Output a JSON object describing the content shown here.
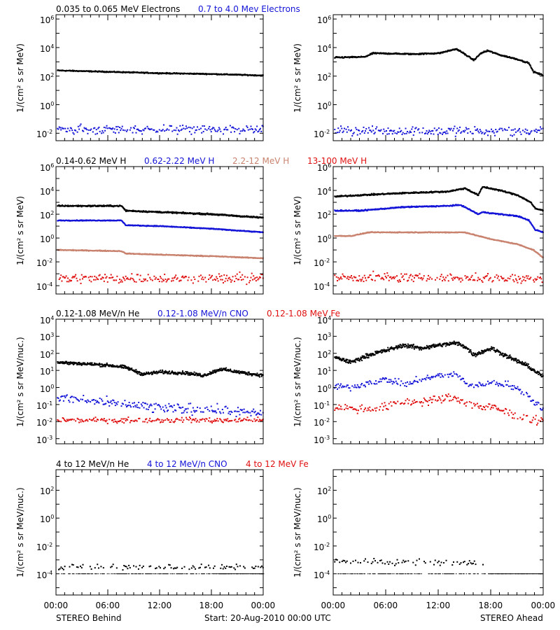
{
  "colors": {
    "black": "#000000",
    "blue": "#1414d8",
    "tan": "#c8826e",
    "red": "#e01010"
  },
  "x_ticks": [
    "00:00",
    "06:00",
    "12:00",
    "18:00",
    "00:00"
  ],
  "footer": {
    "left": "STEREO Behind",
    "center": "Start: 20-Aug-2010 00:00 UTC",
    "right": "STEREO Ahead"
  },
  "chart_data": [
    {
      "type": "scatter",
      "panel": "electrons-behind",
      "ylabel": "1/(cm² s sr MeV)",
      "yscale": "log",
      "ylim": [
        0.003,
        2000000
      ],
      "y_ticks": [
        {
          "label": "10^-2",
          "v": 0.01
        },
        {
          "label": "10^0",
          "v": 1
        },
        {
          "label": "10^2",
          "v": 100
        },
        {
          "label": "10^4",
          "v": 10000
        },
        {
          "label": "10^6",
          "v": 1000000
        }
      ],
      "x": [
        0,
        24
      ],
      "legend": [
        {
          "name": "0.035 to 0.065 MeV Electrons",
          "color": "black"
        },
        {
          "name": "0.7 to 4.0 Mev Electrons",
          "color": "blue"
        }
      ],
      "series": [
        {
          "color": "black",
          "style": "line",
          "noise": 0.03,
          "points": [
            [
              0,
              250
            ],
            [
              6,
              200
            ],
            [
              12,
              160
            ],
            [
              18,
              140
            ],
            [
              24,
              110
            ]
          ]
        },
        {
          "color": "blue",
          "style": "scatter",
          "noise": 0.25,
          "points": [
            [
              0,
              0.018
            ],
            [
              24,
              0.018
            ]
          ]
        }
      ]
    },
    {
      "type": "scatter",
      "panel": "electrons-ahead",
      "ylabel": "1/(cm² s sr MeV)",
      "yscale": "log",
      "ylim": [
        0.003,
        2000000
      ],
      "y_ticks": [
        {
          "label": "10^-2",
          "v": 0.01
        },
        {
          "label": "10^0",
          "v": 1
        },
        {
          "label": "10^2",
          "v": 100
        },
        {
          "label": "10^4",
          "v": 10000
        },
        {
          "label": "10^6",
          "v": 1000000
        }
      ],
      "x": [
        0,
        24
      ],
      "legend": [],
      "series": [
        {
          "color": "black",
          "style": "line",
          "noise": 0.04,
          "points": [
            [
              0,
              2000
            ],
            [
              3.5,
              2200
            ],
            [
              4.5,
              4000
            ],
            [
              9,
              3500
            ],
            [
              12,
              4000
            ],
            [
              14,
              8000
            ],
            [
              14.8,
              4000
            ],
            [
              16,
              1300
            ],
            [
              16.8,
              4000
            ],
            [
              17.6,
              6000
            ],
            [
              19,
              3000
            ],
            [
              21,
              1500
            ],
            [
              22.3,
              800
            ],
            [
              22.8,
              200
            ],
            [
              24,
              110
            ]
          ]
        },
        {
          "color": "blue",
          "style": "scatter",
          "noise": 0.25,
          "points": [
            [
              0,
              0.015
            ],
            [
              24,
              0.014
            ]
          ]
        }
      ]
    },
    {
      "type": "scatter",
      "panel": "protons-behind",
      "ylabel": "1/(cm² s sr MeV)",
      "yscale": "log",
      "ylim": [
        2e-05,
        1000000
      ],
      "y_ticks": [
        {
          "label": "10^-4",
          "v": 0.0001
        },
        {
          "label": "10^-2",
          "v": 0.01
        },
        {
          "label": "10^0",
          "v": 1
        },
        {
          "label": "10^2",
          "v": 100
        },
        {
          "label": "10^4",
          "v": 10000
        },
        {
          "label": "10^6",
          "v": 1000000
        }
      ],
      "x": [
        0,
        24
      ],
      "legend": [
        {
          "name": "0.14-0.62 MeV H",
          "color": "black"
        },
        {
          "name": "0.62-2.22 MeV H",
          "color": "blue"
        },
        {
          "name": "2.2-12 MeV H",
          "color": "tan"
        },
        {
          "name": "13-100 MeV H",
          "color": "red"
        }
      ],
      "series": [
        {
          "color": "black",
          "style": "line",
          "noise": 0.05,
          "points": [
            [
              0,
              500
            ],
            [
              7.5,
              500
            ],
            [
              8,
              200
            ],
            [
              12,
              150
            ],
            [
              18,
              100
            ],
            [
              24,
              50
            ]
          ]
        },
        {
          "color": "blue",
          "style": "line",
          "noise": 0.03,
          "points": [
            [
              0,
              30
            ],
            [
              7.5,
              30
            ],
            [
              8,
              12
            ],
            [
              12,
              10
            ],
            [
              18,
              6
            ],
            [
              24,
              3
            ]
          ]
        },
        {
          "color": "tan",
          "style": "line",
          "noise": 0.03,
          "points": [
            [
              0,
              0.1
            ],
            [
              7.5,
              0.08
            ],
            [
              8,
              0.05
            ],
            [
              12,
              0.04
            ],
            [
              18,
              0.03
            ],
            [
              24,
              0.02
            ]
          ]
        },
        {
          "color": "red",
          "style": "scatter",
          "noise": 0.35,
          "points": [
            [
              0,
              0.0004
            ],
            [
              24,
              0.0004
            ]
          ]
        }
      ]
    },
    {
      "type": "scatter",
      "panel": "protons-ahead",
      "ylabel": "1/(cm² s sr MeV)",
      "yscale": "log",
      "ylim": [
        2e-05,
        1000000
      ],
      "y_ticks": [
        {
          "label": "10^-4",
          "v": 0.0001
        },
        {
          "label": "10^-2",
          "v": 0.01
        },
        {
          "label": "10^0",
          "v": 1
        },
        {
          "label": "10^2",
          "v": 100
        },
        {
          "label": "10^4",
          "v": 10000
        },
        {
          "label": "10^6",
          "v": 1000000
        }
      ],
      "x": [
        0,
        24
      ],
      "legend": [],
      "series": [
        {
          "color": "black",
          "style": "line",
          "noise": 0.05,
          "points": [
            [
              0,
              3000
            ],
            [
              3,
              4000
            ],
            [
              8,
              6000
            ],
            [
              13,
              8000
            ],
            [
              15,
              15000
            ],
            [
              16.5,
              4000
            ],
            [
              17,
              20000
            ],
            [
              19,
              10000
            ],
            [
              21,
              4000
            ],
            [
              22.5,
              1000
            ],
            [
              23,
              300
            ],
            [
              24,
              200
            ]
          ]
        },
        {
          "color": "blue",
          "style": "line",
          "noise": 0.04,
          "points": [
            [
              0,
              200
            ],
            [
              3,
              200
            ],
            [
              8,
              400
            ],
            [
              13,
              500
            ],
            [
              14.5,
              600
            ],
            [
              16.5,
              100
            ],
            [
              17,
              150
            ],
            [
              19,
              100
            ],
            [
              21,
              70
            ],
            [
              22.3,
              30
            ],
            [
              23,
              5
            ],
            [
              24,
              3
            ]
          ]
        },
        {
          "color": "tan",
          "style": "line",
          "noise": 0.03,
          "points": [
            [
              0,
              1.5
            ],
            [
              2,
              1.5
            ],
            [
              4,
              3
            ],
            [
              8,
              3
            ],
            [
              12,
              3
            ],
            [
              15,
              3
            ],
            [
              16.5,
              1.5
            ],
            [
              18,
              0.8
            ],
            [
              21,
              0.3
            ],
            [
              22.8,
              0.1
            ],
            [
              24,
              0.02
            ]
          ]
        },
        {
          "color": "red",
          "style": "scatter",
          "noise": 0.3,
          "points": [
            [
              0,
              0.0005
            ],
            [
              24,
              0.0004
            ]
          ]
        }
      ]
    },
    {
      "type": "scatter",
      "panel": "heavy-ions-low-behind",
      "ylabel": "1/(cm² s sr MeV/nuc.)",
      "yscale": "log",
      "ylim": [
        0.0005,
        10000
      ],
      "y_ticks": [
        {
          "label": "10^-3",
          "v": 0.001
        },
        {
          "label": "10^-2",
          "v": 0.01
        },
        {
          "label": "10^-1",
          "v": 0.1
        },
        {
          "label": "10^0",
          "v": 1
        },
        {
          "label": "10^1",
          "v": 10
        },
        {
          "label": "10^2",
          "v": 100
        },
        {
          "label": "10^3",
          "v": 1000
        },
        {
          "label": "10^4",
          "v": 10000
        }
      ],
      "x": [
        0,
        24
      ],
      "legend": [
        {
          "name": "0.12-1.08 MeV/n He",
          "color": "black"
        },
        {
          "name": "0.12-1.08 MeV/n CNO",
          "color": "blue"
        },
        {
          "name": "0.12-1.08 MeV Fe",
          "color": "red"
        }
      ],
      "series": [
        {
          "color": "black",
          "style": "line",
          "noise": 0.08,
          "points": [
            [
              0,
              30
            ],
            [
              6,
              20
            ],
            [
              8,
              15
            ],
            [
              10,
              6
            ],
            [
              12,
              8
            ],
            [
              15,
              7
            ],
            [
              17,
              5
            ],
            [
              19,
              12
            ],
            [
              21,
              8
            ],
            [
              24,
              5
            ]
          ]
        },
        {
          "color": "blue",
          "style": "scatter",
          "noise": 0.25,
          "points": [
            [
              0,
              0.25
            ],
            [
              6,
              0.12
            ],
            [
              12,
              0.06
            ],
            [
              18,
              0.05
            ],
            [
              24,
              0.03
            ]
          ]
        },
        {
          "color": "red",
          "style": "scatter",
          "noise": 0.12,
          "points": [
            [
              0,
              0.012
            ],
            [
              24,
              0.012
            ]
          ]
        }
      ]
    },
    {
      "type": "scatter",
      "panel": "heavy-ions-low-ahead",
      "ylabel": "1/(cm² s sr MeV/nuc.)",
      "yscale": "log",
      "ylim": [
        0.0005,
        10000
      ],
      "y_ticks": [
        {
          "label": "10^-3",
          "v": 0.001
        },
        {
          "label": "10^-2",
          "v": 0.01
        },
        {
          "label": "10^-1",
          "v": 0.1
        },
        {
          "label": "10^0",
          "v": 1
        },
        {
          "label": "10^1",
          "v": 10
        },
        {
          "label": "10^2",
          "v": 100
        },
        {
          "label": "10^3",
          "v": 1000
        },
        {
          "label": "10^4",
          "v": 10000
        }
      ],
      "x": [
        0,
        24
      ],
      "legend": [],
      "series": [
        {
          "color": "black",
          "style": "line",
          "noise": 0.1,
          "points": [
            [
              0,
              60
            ],
            [
              2,
              30
            ],
            [
              4,
              80
            ],
            [
              6,
              150
            ],
            [
              8,
              300
            ],
            [
              10,
              200
            ],
            [
              12,
              300
            ],
            [
              14,
              400
            ],
            [
              15,
              250
            ],
            [
              16,
              80
            ],
            [
              18,
              200
            ],
            [
              20,
              60
            ],
            [
              22,
              20
            ],
            [
              24,
              4
            ]
          ]
        },
        {
          "color": "blue",
          "style": "scatter",
          "noise": 0.15,
          "points": [
            [
              0,
              1.2
            ],
            [
              2,
              1
            ],
            [
              4,
              2
            ],
            [
              6,
              3
            ],
            [
              8,
              1.5
            ],
            [
              10,
              3
            ],
            [
              12,
              5
            ],
            [
              14,
              6
            ],
            [
              15,
              2
            ],
            [
              16,
              1.2
            ],
            [
              18,
              2
            ],
            [
              20,
              1.5
            ],
            [
              22,
              0.4
            ],
            [
              24,
              0.05
            ]
          ]
        },
        {
          "color": "red",
          "style": "scatter",
          "noise": 0.2,
          "points": [
            [
              0,
              0.07
            ],
            [
              4,
              0.05
            ],
            [
              8,
              0.12
            ],
            [
              12,
              0.2
            ],
            [
              14,
              0.25
            ],
            [
              16,
              0.08
            ],
            [
              18,
              0.07
            ],
            [
              20,
              0.03
            ],
            [
              22,
              0.015
            ],
            [
              24,
              0.012
            ]
          ]
        }
      ]
    },
    {
      "type": "scatter",
      "panel": "heavy-ions-high-behind",
      "ylabel": "1/(cm² s sr MeV/nuc.)",
      "yscale": "log",
      "ylim": [
        3e-06,
        3000
      ],
      "y_ticks": [
        {
          "label": "10^-4",
          "v": 0.0001
        },
        {
          "label": "10^-2",
          "v": 0.01
        },
        {
          "label": "10^0",
          "v": 1
        },
        {
          "label": "10^2",
          "v": 100
        }
      ],
      "x": [
        0,
        24
      ],
      "legend": [
        {
          "name": "4 to 12 MeV/n He",
          "color": "black"
        },
        {
          "name": "4 to 12 MeV/n CNO",
          "color": "blue"
        },
        {
          "name": "4 to 12 MeV Fe",
          "color": "red"
        }
      ],
      "series": [
        {
          "color": "black",
          "style": "sparse",
          "noise": 0.15,
          "points": [
            [
              0,
              0.0003
            ],
            [
              24,
              0.0003
            ]
          ]
        },
        {
          "color": "black",
          "style": "floor",
          "points": [
            [
              0,
              0.0001
            ],
            [
              24,
              0.0001
            ]
          ]
        }
      ]
    },
    {
      "type": "scatter",
      "panel": "heavy-ions-high-ahead",
      "ylabel": "1/(cm² s sr MeV/nuc.)",
      "yscale": "log",
      "ylim": [
        3e-06,
        3000
      ],
      "y_ticks": [
        {
          "label": "10^-4",
          "v": 0.0001
        },
        {
          "label": "10^-2",
          "v": 0.01
        },
        {
          "label": "10^0",
          "v": 1
        },
        {
          "label": "10^2",
          "v": 100
        }
      ],
      "x": [
        0,
        24
      ],
      "legend": [],
      "series": [
        {
          "color": "black",
          "style": "sparse",
          "noise": 0.15,
          "points": [
            [
              0,
              0.0008
            ],
            [
              16,
              0.0006
            ],
            [
              24,
              0.0004
            ]
          ]
        },
        {
          "color": "black",
          "style": "floor",
          "points": [
            [
              0,
              0.0001
            ],
            [
              24,
              0.0001
            ]
          ]
        }
      ]
    }
  ]
}
